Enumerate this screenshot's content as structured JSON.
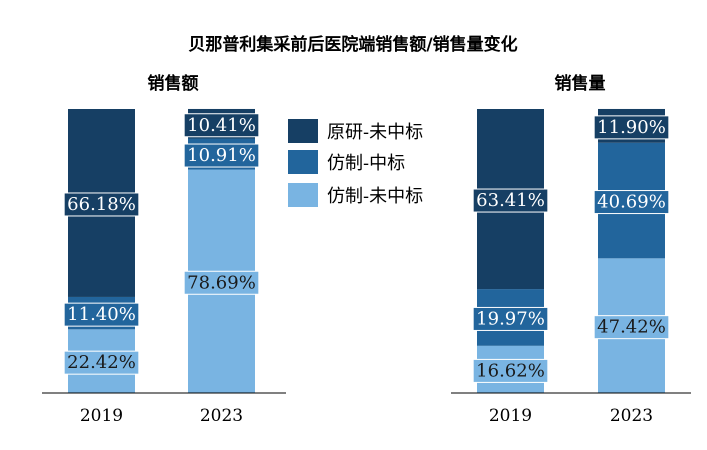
{
  "chart_data": {
    "type": "bar",
    "stacked": true,
    "title": "贝那普利集采前后医院端销售额/销售量变化",
    "ylim": [
      0,
      100
    ],
    "grid": false,
    "legend_placement": "center",
    "legend": [
      {
        "name": "原研-未中标",
        "color": "#163f64"
      },
      {
        "name": "仿制-中标",
        "color": "#22659c"
      },
      {
        "name": "仿制-未中标",
        "color": "#79b4e2"
      }
    ],
    "panels": [
      {
        "subtitle": "销售额",
        "categories": [
          "2019",
          "2023"
        ],
        "series": [
          {
            "name": "仿制-未中标",
            "color": "#79b4e2",
            "values": [
              22.42,
              78.69
            ],
            "labels": [
              "22.42%",
              "78.69%"
            ]
          },
          {
            "name": "仿制-中标",
            "color": "#22659c",
            "values": [
              11.4,
              10.91
            ],
            "labels": [
              "11.40%",
              "10.91%"
            ]
          },
          {
            "name": "原研-未中标",
            "color": "#163f64",
            "values": [
              66.18,
              10.41
            ],
            "labels": [
              "66.18%",
              "10.41%"
            ]
          }
        ]
      },
      {
        "subtitle": "销售量",
        "categories": [
          "2019",
          "2023"
        ],
        "series": [
          {
            "name": "仿制-未中标",
            "color": "#79b4e2",
            "values": [
              16.62,
              47.42
            ],
            "labels": [
              "16.62%",
              "47.42%"
            ]
          },
          {
            "name": "仿制-中标",
            "color": "#22659c",
            "values": [
              19.97,
              40.69
            ],
            "labels": [
              "19.97%",
              "40.69%"
            ]
          },
          {
            "name": "原研-未中标",
            "color": "#163f64",
            "values": [
              63.41,
              11.9
            ],
            "labels": [
              "63.41%",
              "11.90%"
            ]
          }
        ]
      }
    ]
  }
}
